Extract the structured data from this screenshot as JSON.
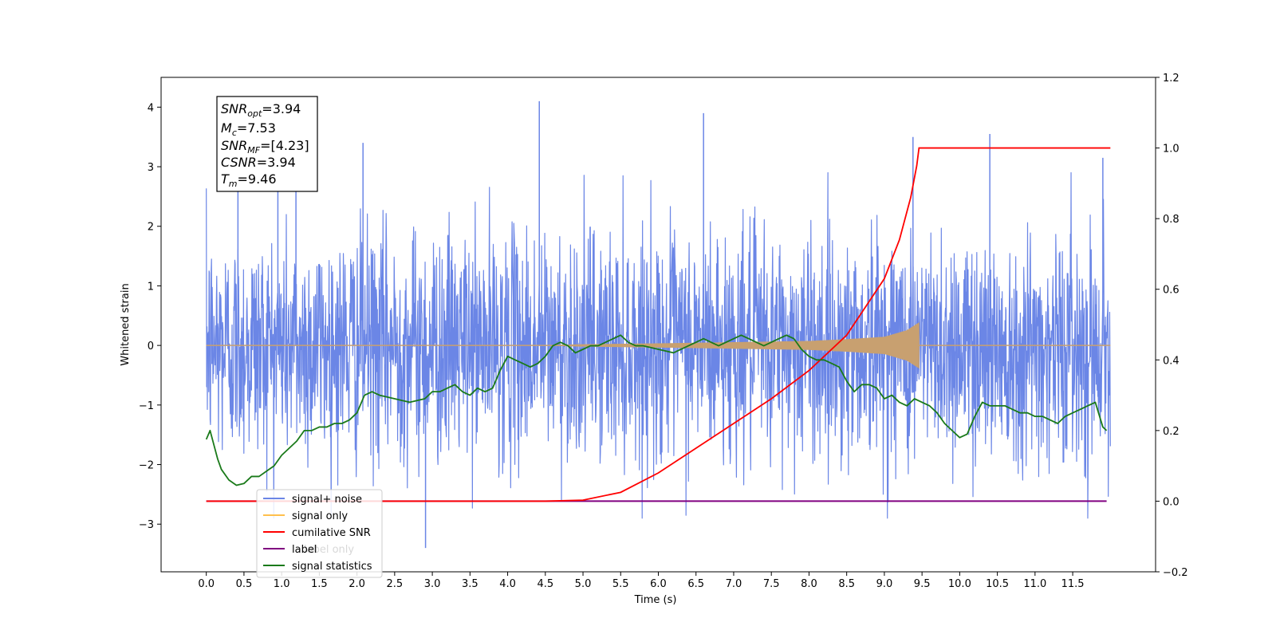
{
  "chart_data": {
    "type": "line",
    "xlabel": "Time (s)",
    "ylabel": "Whitened strain",
    "y2label": "",
    "xlim": [
      -0.6,
      12.6
    ],
    "ylim": [
      -3.8,
      4.5
    ],
    "y2lim": [
      -0.2,
      1.2
    ],
    "x_ticks": [
      0.0,
      0.5,
      1.0,
      1.5,
      2.0,
      2.5,
      3.0,
      3.5,
      4.0,
      4.5,
      5.0,
      5.5,
      6.0,
      6.5,
      7.0,
      7.5,
      8.0,
      8.5,
      9.0,
      9.5,
      10.0,
      10.5,
      11.0,
      11.5
    ],
    "x_tick_labels": [
      "0.0",
      "0.5",
      "1.0",
      "1.5",
      "2.0",
      "2.5",
      "3.0",
      "3.5",
      "4.0",
      "4.5",
      "5.0",
      "5.5",
      "6.0",
      "6.5",
      "7.0",
      "7.5",
      "8.0",
      "8.5",
      "9.0",
      "9.5",
      "10.0",
      "10.5",
      "11.0",
      "11.5"
    ],
    "y_ticks": [
      -3,
      -2,
      -1,
      0,
      1,
      2,
      3,
      4
    ],
    "y_tick_labels": [
      "−3",
      "−2",
      "−1",
      "0",
      "1",
      "2",
      "3",
      "4"
    ],
    "y2_ticks": [
      -0.2,
      0.0,
      0.2,
      0.4,
      0.6,
      0.8,
      1.0,
      1.2
    ],
    "y2_tick_labels": [
      "−0.2",
      "0.0",
      "0.2",
      "0.4",
      "0.6",
      "0.8",
      "1.0",
      "1.2"
    ],
    "legend_position": "lower-left",
    "legend": [
      "signal+ noise",
      "signal only",
      "cumilative SNR",
      "label",
      "signal statistics"
    ],
    "legend_hidden_text": "label only",
    "stats_box": [
      {
        "sym": "SNR",
        "sub": "opt",
        "val": "=3.94"
      },
      {
        "sym": "M",
        "sub": "c",
        "val": "=7.53"
      },
      {
        "sym": "SNR",
        "sub": "MF",
        "val": "=[4.23]"
      },
      {
        "sym": "CSNR",
        "sub": "",
        "val": "=3.94"
      },
      {
        "sym": "T",
        "sub": "m",
        "val": "=9.46"
      }
    ],
    "colors": {
      "noise": "#6b86e6",
      "signal": "#c8a070",
      "signal_legend": "#ffc04d",
      "cumulative": "#ff0000",
      "label": "#800080",
      "statistics": "#1a7a1a"
    },
    "noise": {
      "x_range": [
        0.0,
        12.0
      ],
      "spike_x": [
        0.42,
        0.95,
        1.19,
        2.08,
        2.91,
        4.42,
        6.6,
        9.38,
        10.4,
        11.9
      ],
      "spike_y": [
        2.9,
        3.2,
        3.3,
        3.4,
        -3.4,
        4.1,
        3.9,
        3.5,
        3.55,
        3.15
      ]
    },
    "signal_only": {
      "x_end": 9.46,
      "envelope_x": [
        4.5,
        5.0,
        6.0,
        7.0,
        8.0,
        8.5,
        9.0,
        9.3,
        9.46,
        12.0
      ],
      "envelope_y": [
        0.0,
        0.015,
        0.03,
        0.05,
        0.07,
        0.1,
        0.14,
        0.25,
        0.38,
        0.0
      ]
    },
    "cumulative_snr": {
      "x": [
        0.0,
        4.5,
        5.0,
        5.5,
        6.0,
        6.5,
        7.0,
        7.5,
        8.0,
        8.5,
        9.0,
        9.2,
        9.35,
        9.43,
        9.46,
        12.0
      ],
      "y": [
        0.0,
        0.0,
        0.003,
        0.025,
        0.08,
        0.15,
        0.22,
        0.29,
        0.37,
        0.47,
        0.63,
        0.74,
        0.86,
        0.95,
        1.0,
        1.0
      ]
    },
    "label": {
      "x": [
        0.0,
        11.95
      ],
      "y": [
        0.0,
        0.0
      ]
    },
    "signal_statistics": {
      "x": [
        0.0,
        0.05,
        0.1,
        0.15,
        0.2,
        0.3,
        0.4,
        0.5,
        0.6,
        0.7,
        0.8,
        0.9,
        1.0,
        1.1,
        1.2,
        1.3,
        1.4,
        1.5,
        1.6,
        1.7,
        1.8,
        1.9,
        2.0,
        2.1,
        2.2,
        2.3,
        2.5,
        2.7,
        2.9,
        3.0,
        3.1,
        3.2,
        3.3,
        3.4,
        3.5,
        3.6,
        3.7,
        3.8,
        3.9,
        4.0,
        4.1,
        4.2,
        4.3,
        4.4,
        4.5,
        4.6,
        4.7,
        4.8,
        4.9,
        5.0,
        5.1,
        5.2,
        5.3,
        5.4,
        5.5,
        5.6,
        5.7,
        5.8,
        6.0,
        6.2,
        6.4,
        6.5,
        6.6,
        6.7,
        6.8,
        7.0,
        7.1,
        7.2,
        7.4,
        7.6,
        7.7,
        7.8,
        7.9,
        8.0,
        8.1,
        8.2,
        8.3,
        8.4,
        8.5,
        8.6,
        8.7,
        8.8,
        8.9,
        9.0,
        9.1,
        9.2,
        9.3,
        9.4,
        9.5,
        9.6,
        9.7,
        9.8,
        9.9,
        10.0,
        10.1,
        10.2,
        10.3,
        10.4,
        10.5,
        10.6,
        10.7,
        10.8,
        10.9,
        11.0,
        11.1,
        11.2,
        11.3,
        11.4,
        11.5,
        11.6,
        11.7,
        11.8,
        11.9,
        11.95
      ],
      "y": [
        0.175,
        0.2,
        0.16,
        0.12,
        0.09,
        0.06,
        0.045,
        0.05,
        0.07,
        0.07,
        0.085,
        0.1,
        0.13,
        0.15,
        0.17,
        0.2,
        0.2,
        0.21,
        0.21,
        0.22,
        0.22,
        0.23,
        0.25,
        0.3,
        0.31,
        0.3,
        0.29,
        0.28,
        0.29,
        0.31,
        0.31,
        0.32,
        0.33,
        0.31,
        0.3,
        0.32,
        0.31,
        0.32,
        0.37,
        0.41,
        0.4,
        0.39,
        0.38,
        0.39,
        0.41,
        0.44,
        0.45,
        0.44,
        0.42,
        0.43,
        0.44,
        0.44,
        0.45,
        0.46,
        0.47,
        0.45,
        0.44,
        0.44,
        0.43,
        0.42,
        0.44,
        0.45,
        0.46,
        0.45,
        0.44,
        0.46,
        0.47,
        0.46,
        0.44,
        0.46,
        0.47,
        0.46,
        0.43,
        0.41,
        0.4,
        0.4,
        0.39,
        0.38,
        0.34,
        0.31,
        0.33,
        0.33,
        0.32,
        0.29,
        0.3,
        0.28,
        0.27,
        0.29,
        0.28,
        0.27,
        0.25,
        0.22,
        0.2,
        0.18,
        0.19,
        0.24,
        0.28,
        0.27,
        0.27,
        0.27,
        0.26,
        0.25,
        0.25,
        0.24,
        0.24,
        0.23,
        0.22,
        0.24,
        0.25,
        0.26,
        0.27,
        0.28,
        0.21,
        0.2
      ]
    }
  }
}
